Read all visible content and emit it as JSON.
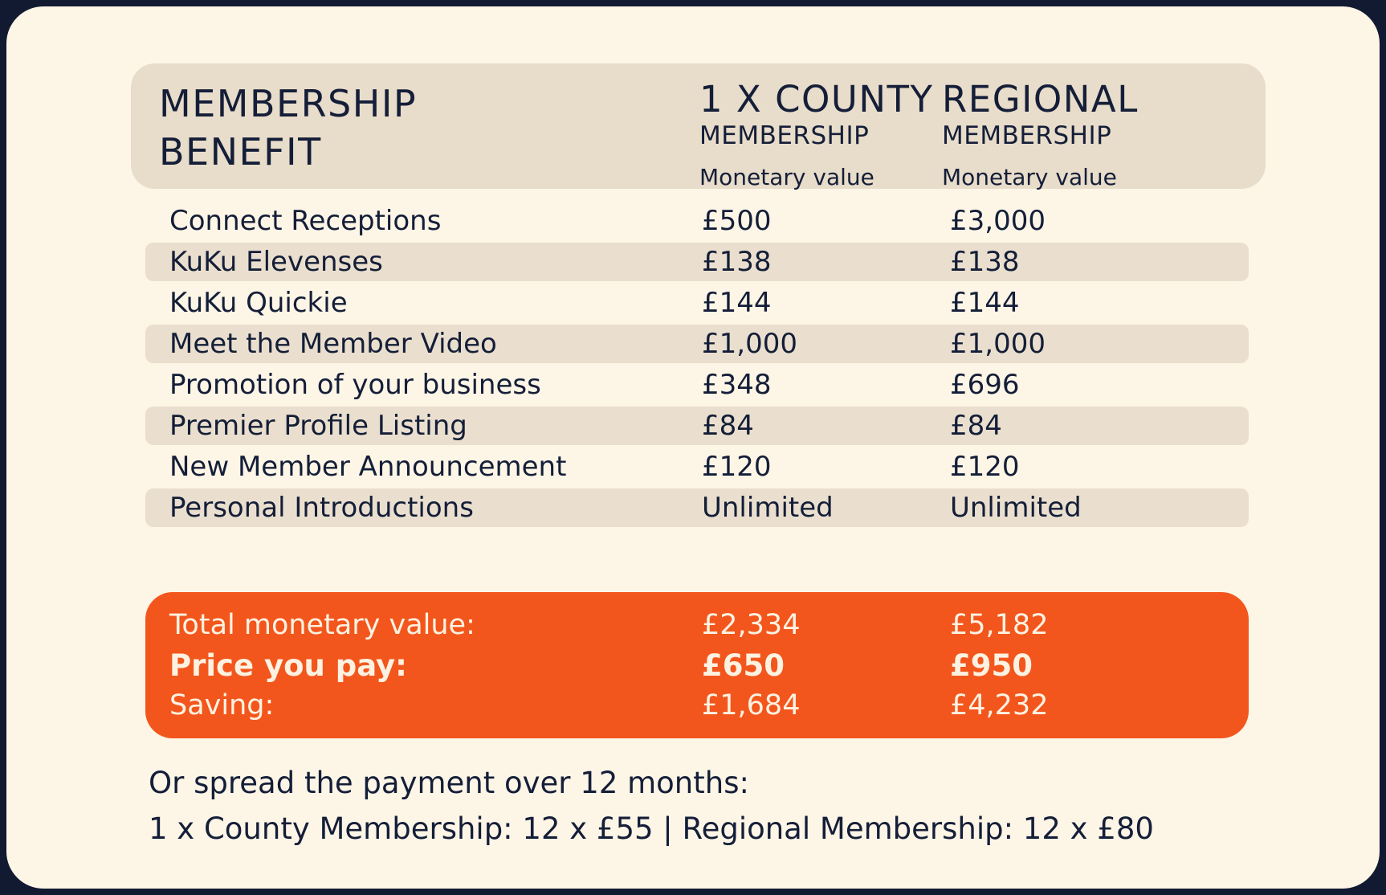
{
  "header": {
    "benefit_title_line1": "MEMBERSHIP",
    "benefit_title_line2": "BENEFIT",
    "columns": [
      {
        "title": "1 X COUNTY",
        "subtitle": "MEMBERSHIP",
        "note": "Monetary value"
      },
      {
        "title": "REGIONAL",
        "subtitle": "MEMBERSHIP",
        "note": "Monetary value"
      }
    ]
  },
  "benefits": [
    {
      "name": "Connect Receptions",
      "county_value": "£500",
      "regional_value": "£3,000"
    },
    {
      "name": "KuKu Elevenses",
      "county_value": "£138",
      "regional_value": "£138"
    },
    {
      "name": "KuKu Quickie",
      "county_value": "£144",
      "regional_value": "£144"
    },
    {
      "name": "Meet the Member Video",
      "county_value": "£1,000",
      "regional_value": "£1,000"
    },
    {
      "name": "Promotion of your business",
      "county_value": "£348",
      "regional_value": "£696"
    },
    {
      "name": "Premier Profile Listing",
      "county_value": "£84",
      "regional_value": "£84"
    },
    {
      "name": "New Member Announcement",
      "county_value": "£120",
      "regional_value": "£120"
    },
    {
      "name": "Personal Introductions",
      "county_value": "Unlimited",
      "regional_value": "Unlimited"
    }
  ],
  "summary": {
    "rows": [
      {
        "label": "Total monetary value:",
        "county": "£2,334",
        "regional": "£5,182"
      },
      {
        "label": "Price you pay:",
        "county": "£650",
        "regional": "£950"
      },
      {
        "label": "Saving:",
        "county": "£1,684",
        "regional": "£4,232"
      }
    ]
  },
  "footer": {
    "line1": "Or spread the payment over 12 months:",
    "line2": "1 x County Membership: 12 x £55 | Regional Membership: 12 x £80"
  },
  "colors": {
    "background_navy": "#111a31",
    "card_cream": "#fdf5e6",
    "header_beige": "#e8dcca",
    "row_highlight_beige": "#eadfce",
    "accent_orange": "#f3561c",
    "text_navy": "#141e38",
    "text_cream_on_orange": "#fdf2e2"
  }
}
